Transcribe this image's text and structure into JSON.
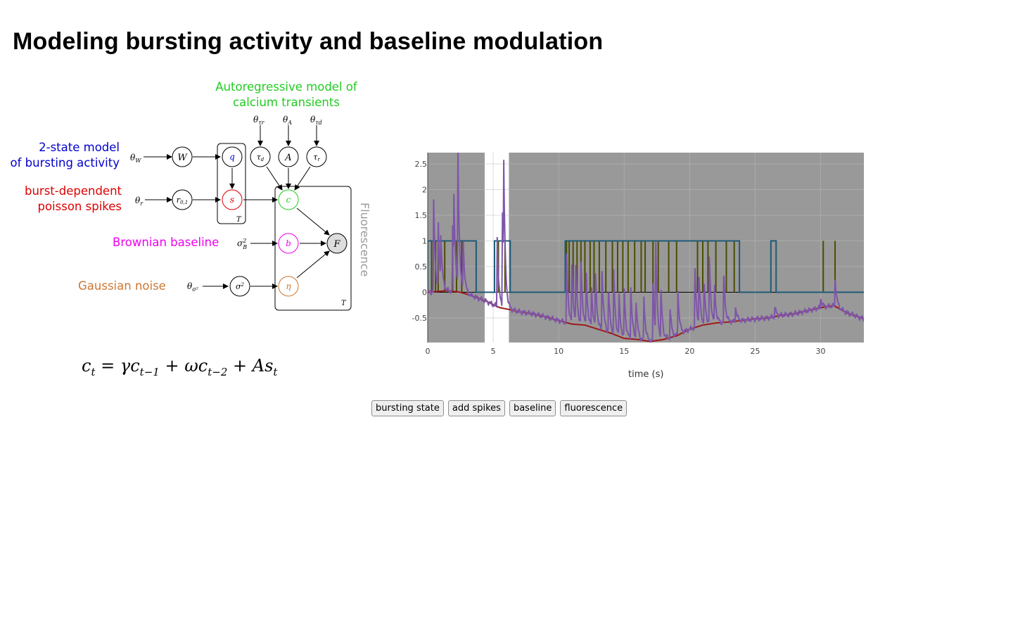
{
  "page": {
    "title": "Modeling bursting activity and baseline modulation"
  },
  "model": {
    "ar_label_line1": "Autoregressive model of",
    "ar_label_line2": "calcium transients",
    "bursting_label_line1": "2-state model",
    "bursting_label_line2": "of bursting activity",
    "spikes_label_line1": "burst-dependent",
    "spikes_label_line2": "poisson spikes",
    "baseline_label": "Brownian baseline",
    "noise_label": "Gaussian noise",
    "fluorescence_label": "Fluorescence",
    "plate_label": "T",
    "colors": {
      "ar": "#22cc22",
      "bursting": "#0000cc",
      "spikes": "#dd0000",
      "baseline": "#ee00ee",
      "noise": "#cc7733",
      "fluor": "#999999"
    }
  },
  "equation": {
    "text": "c_t = γc_{t−1} + ωc_{t−2} + As_t"
  },
  "buttons": [
    "bursting state",
    "add spikes",
    "baseline",
    "fluorescence"
  ],
  "chart_data": {
    "type": "line",
    "xlabel": "time (s)",
    "ylabel": "",
    "xlim": [
      0,
      33.3
    ],
    "ylim": [
      -0.98,
      2.72
    ],
    "xticks": [
      0,
      5,
      10,
      15,
      20,
      25,
      30
    ],
    "yticks": [
      -0.5,
      0,
      0.5,
      1,
      1.5,
      2,
      2.5
    ],
    "grid": true,
    "legend": "none",
    "shaded_regions": [
      [
        0,
        4.35
      ],
      [
        6.2,
        33.3
      ]
    ],
    "colors": {
      "shade": "#999999",
      "state": "#1f5a78",
      "spikes": "#4d4d00",
      "baseline": "#a01818",
      "fluorescence": "#7e56a8"
    },
    "series": [
      {
        "key": "state",
        "segments": [
          [
            0,
            3.7
          ],
          [
            5.1,
            6.3
          ],
          [
            10.5,
            23.8
          ],
          [
            26.2,
            26.6
          ]
        ]
      },
      {
        "key": "spikes",
        "times": [
          0.3,
          0.6,
          0.8,
          1.3,
          1.9,
          2.2,
          2.6,
          5.4,
          5.9,
          10.6,
          10.8,
          11.1,
          11.4,
          11.7,
          12.0,
          12.4,
          12.7,
          13.1,
          13.6,
          14.1,
          14.5,
          14.9,
          15.3,
          15.8,
          16.3,
          16.6,
          17.2,
          17.6,
          18.4,
          19.0,
          20.6,
          21.0,
          21.4,
          22.0,
          22.8,
          23.4,
          30.2,
          31.1
        ]
      },
      {
        "key": "baseline",
        "points": [
          [
            0,
            0.0
          ],
          [
            1.5,
            0.03
          ],
          [
            2.5,
            0.0
          ],
          [
            3.5,
            -0.08
          ],
          [
            4.5,
            -0.18
          ],
          [
            5.5,
            -0.3
          ],
          [
            6.3,
            -0.34
          ],
          [
            7.0,
            -0.38
          ],
          [
            8.0,
            -0.42
          ],
          [
            9.0,
            -0.48
          ],
          [
            10.0,
            -0.55
          ],
          [
            11.0,
            -0.62
          ],
          [
            12.0,
            -0.64
          ],
          [
            13.0,
            -0.72
          ],
          [
            14.0,
            -0.8
          ],
          [
            15.0,
            -0.9
          ],
          [
            16.0,
            -0.92
          ],
          [
            17.0,
            -0.96
          ],
          [
            18.0,
            -0.92
          ],
          [
            19.0,
            -0.85
          ],
          [
            20.0,
            -0.72
          ],
          [
            21.0,
            -0.64
          ],
          [
            22.0,
            -0.6
          ],
          [
            23.0,
            -0.58
          ],
          [
            24.0,
            -0.55
          ],
          [
            25.0,
            -0.52
          ],
          [
            26.0,
            -0.5
          ],
          [
            27.0,
            -0.45
          ],
          [
            28.0,
            -0.42
          ],
          [
            29.0,
            -0.36
          ],
          [
            30.0,
            -0.3
          ],
          [
            31.0,
            -0.26
          ],
          [
            32.0,
            -0.4
          ],
          [
            33.3,
            -0.52
          ]
        ]
      },
      {
        "key": "fluorescence",
        "peaks": [
          [
            0.45,
            1.8
          ],
          [
            0.8,
            1.3
          ],
          [
            1.0,
            0.9
          ],
          [
            1.9,
            1.3
          ],
          [
            2.0,
            1.4
          ],
          [
            2.3,
            2.72
          ],
          [
            2.7,
            1.0
          ],
          [
            5.3,
            1.4
          ],
          [
            5.7,
            2.0
          ],
          [
            5.8,
            2.1
          ],
          [
            10.6,
            1.4
          ],
          [
            11.0,
            1.2
          ],
          [
            11.3,
            1.1
          ],
          [
            11.7,
            1.2
          ],
          [
            12.1,
            1.0
          ],
          [
            12.5,
            0.8
          ],
          [
            12.8,
            1.1
          ],
          [
            13.3,
            1.3
          ],
          [
            13.8,
            0.9
          ],
          [
            14.2,
            1.2
          ],
          [
            14.6,
            0.8
          ],
          [
            15.0,
            1.0
          ],
          [
            15.5,
            1.1
          ],
          [
            15.9,
            0.8
          ],
          [
            16.5,
            0.9
          ],
          [
            17.2,
            1.2
          ],
          [
            17.4,
            1.9
          ],
          [
            17.8,
            1.0
          ],
          [
            18.5,
            0.6
          ],
          [
            19.1,
            0.9
          ],
          [
            20.4,
            1.2
          ],
          [
            20.7,
            1.0
          ],
          [
            21.1,
            0.8
          ],
          [
            21.5,
            1.3
          ],
          [
            21.9,
            0.7
          ],
          [
            22.6,
            1.0
          ],
          [
            23.5,
            0.3
          ],
          [
            26.5,
            0.2
          ],
          [
            30.0,
            0.2
          ],
          [
            31.1,
            0.6
          ]
        ]
      }
    ]
  }
}
